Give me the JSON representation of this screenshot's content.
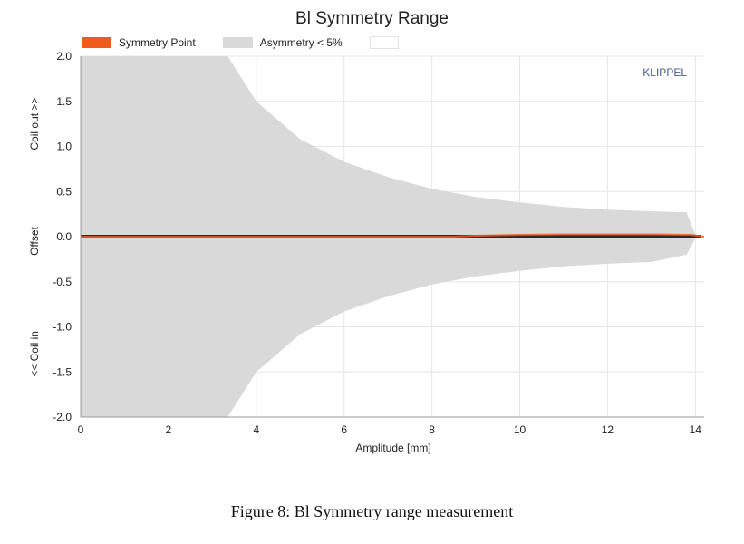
{
  "chart_data": {
    "type": "area",
    "title": "Bl Symmetry Range",
    "xlabel": "Amplitude [mm]",
    "ylabel": "<< Coil in          Offset          Coil out >>",
    "ylabel_parts": [
      "<< Coil in",
      "Offset",
      "Coil out >>"
    ],
    "xlim": [
      0,
      14.2
    ],
    "ylim": [
      -2.0,
      2.0
    ],
    "x_ticks": [
      "0",
      "2",
      "4",
      "6",
      "8",
      "10",
      "12",
      "14"
    ],
    "x_tick_values": [
      0,
      2,
      4,
      6,
      8,
      10,
      12,
      14
    ],
    "y_ticks": [
      "2.0",
      "1.5",
      "1.0",
      "0.5",
      "0.0",
      "-0.5",
      "-1.0",
      "-1.5",
      "-2.0"
    ],
    "y_tick_values": [
      2.0,
      1.5,
      1.0,
      0.5,
      0.0,
      -0.5,
      -1.0,
      -1.5,
      -2.0
    ],
    "grid": true,
    "legend_placement": "top-left",
    "watermark": "KLIPPEL",
    "series": [
      {
        "name": "Asymmetry < 5%",
        "color": "#d9d9d9",
        "x": [
          0,
          3.35,
          4,
          5,
          6,
          7,
          8,
          9,
          10,
          11,
          12,
          13,
          13.8,
          14.0
        ],
        "upper": [
          2.0,
          2.0,
          1.5,
          1.08,
          0.83,
          0.66,
          0.53,
          0.44,
          0.38,
          0.33,
          0.3,
          0.28,
          0.27,
          0.02
        ],
        "lower": [
          -2.0,
          -2.0,
          -1.5,
          -1.08,
          -0.83,
          -0.66,
          -0.53,
          -0.44,
          -0.38,
          -0.33,
          -0.3,
          -0.28,
          -0.2,
          -0.02
        ]
      },
      {
        "name": "Symmetry Point",
        "color": "#f05a1a",
        "x": [
          0,
          8.5,
          9,
          10,
          11,
          12,
          13,
          13.9,
          14.2
        ],
        "y": [
          0.0,
          0.0,
          0.01,
          0.02,
          0.025,
          0.025,
          0.025,
          0.02,
          0.0
        ]
      }
    ],
    "legend": [
      {
        "name": "Symmetry Point",
        "color": "#f05a1a"
      },
      {
        "name": "Asymmetry < 5%",
        "color": "#d9d9d9"
      },
      {
        "name": "",
        "color": "#ffffff"
      }
    ]
  },
  "caption": "Figure 8: Bl Symmetry range measurement"
}
